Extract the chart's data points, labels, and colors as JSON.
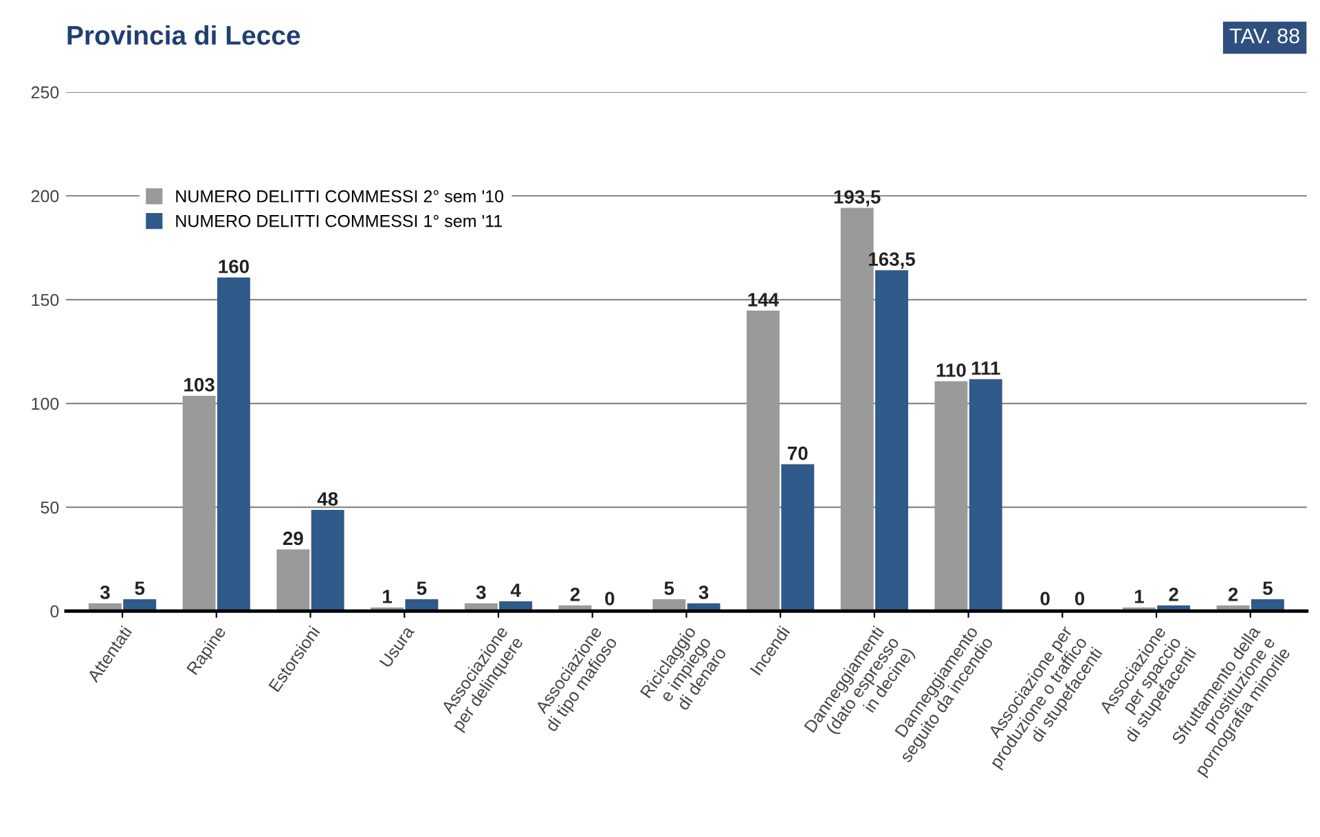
{
  "chart_data": {
    "type": "bar",
    "title": "Provincia di Lecce",
    "annotations": [
      "TAV. 88"
    ],
    "categories": [
      "Attentati",
      "Rapine",
      "Estorsioni",
      "Usura",
      "Associazione\nper delinquere",
      "Associazione\ndi tipo mafioso",
      "Riciclaggio\ne impiego\ndi denaro",
      "Incendi",
      "Danneggiamenti\n(dato espresso\nin decine)",
      "Danneggiamento\nseguito da incendio",
      "Associazione per\nproduzione o traffico\ndi stupefacenti",
      "Associazione\nper spaccio\ndi stupefacenti",
      "Sfruttamento della\nprostituzione e\npornografia minorile"
    ],
    "series": [
      {
        "name": "NUMERO DELITTI COMMESSI 2° sem '10",
        "color": "#9a9a9a",
        "values": [
          3,
          103,
          29,
          1,
          3,
          2,
          5,
          144,
          193.5,
          110,
          0,
          1,
          2
        ],
        "value_labels": [
          "3",
          "103",
          "29",
          "1",
          "3",
          "2",
          "5",
          "144",
          "193,5",
          "110",
          "0",
          "1",
          "2"
        ]
      },
      {
        "name": "NUMERO DELITTI COMMESSI 1° sem '11",
        "color": "#2f5a8a",
        "values": [
          5,
          160,
          48,
          5,
          4,
          0,
          3,
          70,
          163.5,
          111,
          0,
          2,
          5
        ],
        "value_labels": [
          "5",
          "160",
          "48",
          "5",
          "4",
          "0",
          "3",
          "70",
          "163,5",
          "111",
          "0",
          "2",
          "5"
        ]
      }
    ],
    "ylim": [
      0,
      250
    ],
    "yticks": [
      0,
      50,
      100,
      150,
      200,
      250
    ],
    "grid": "y",
    "legend": "top left"
  }
}
